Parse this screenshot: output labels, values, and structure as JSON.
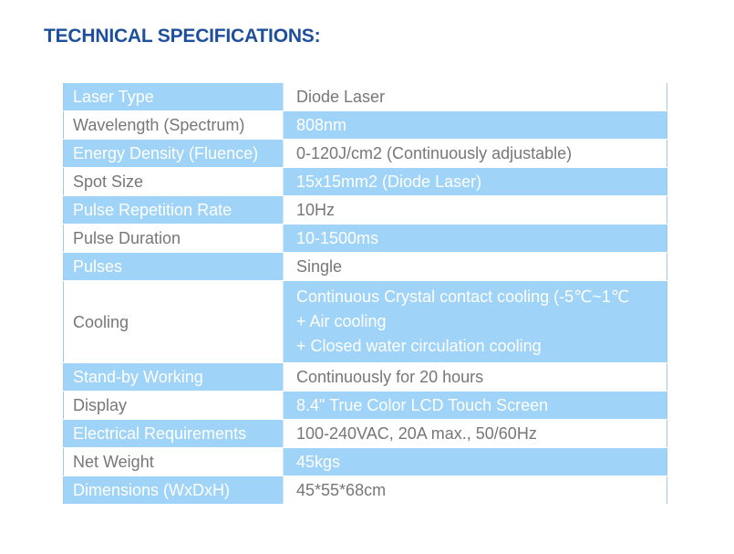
{
  "title": "TECHNICAL SPECIFICATIONS:",
  "specs": [
    {
      "label": "Laser Type",
      "value": "Diode Laser",
      "label_bg": "blue",
      "value_bg": "white"
    },
    {
      "label": "Wavelength (Spectrum)",
      "value": "808nm",
      "label_bg": "white",
      "value_bg": "blue"
    },
    {
      "label": "Energy Density (Fluence)",
      "value": "0-120J/cm2 (Continuously adjustable)",
      "label_bg": "blue",
      "value_bg": "white"
    },
    {
      "label": "Spot Size",
      "value": "15x15mm2 (Diode Laser)",
      "label_bg": "white",
      "value_bg": "blue"
    },
    {
      "label": "Pulse Repetition Rate",
      "value": "10Hz",
      "label_bg": "blue",
      "value_bg": "white"
    },
    {
      "label": "Pulse Duration",
      "value": "10-1500ms",
      "label_bg": "white",
      "value_bg": "blue"
    },
    {
      "label": "Pulses",
      "value": "Single",
      "label_bg": "blue",
      "value_bg": "white"
    },
    {
      "label": "Cooling",
      "value_lines": [
        "Continuous Crystal contact cooling (-5℃~1℃",
        "+ Air cooling",
        "+ Closed water circulation cooling"
      ],
      "label_bg": "white",
      "value_bg": "blue"
    },
    {
      "label": "Stand-by Working",
      "value": "Continuously for 20 hours",
      "label_bg": "blue",
      "value_bg": "white"
    },
    {
      "label": "Display",
      "value": "8.4\" True Color LCD Touch Screen",
      "label_bg": "white",
      "value_bg": "blue"
    },
    {
      "label": "Electrical Requirements",
      "value": "100-240VAC, 20A max., 50/60Hz",
      "label_bg": "blue",
      "value_bg": "white"
    },
    {
      "label": "Net Weight",
      "value": "45kgs",
      "label_bg": "white",
      "value_bg": "blue"
    },
    {
      "label": "Dimensions (WxDxH)",
      "value": "45*55*68cm",
      "label_bg": "blue",
      "value_bg": "white"
    }
  ]
}
